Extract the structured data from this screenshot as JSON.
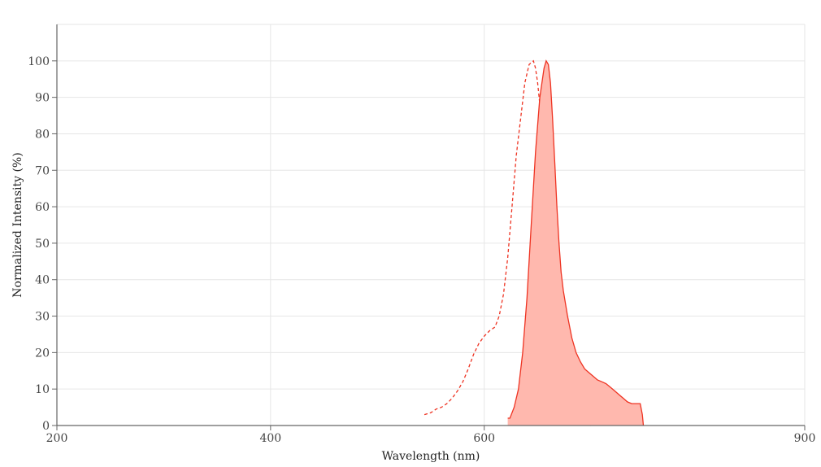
{
  "chart_data": {
    "type": "area",
    "title": "",
    "xlabel": "Wavelength (nm)",
    "ylabel": "Normalized Intensity (%)",
    "xlim": [
      200,
      900
    ],
    "ylim": [
      0,
      110
    ],
    "xticks": [
      200,
      400,
      600,
      900
    ],
    "yticks": [
      0,
      10,
      20,
      30,
      40,
      50,
      60,
      70,
      80,
      90,
      100
    ],
    "grid": true,
    "legend": "none",
    "colors": {
      "line": "#ee3322",
      "fill": "#ffb8ae"
    },
    "series": [
      {
        "style": "dashed",
        "x": [
          544,
          550,
          555,
          560,
          565,
          570,
          575,
          580,
          585,
          590,
          595,
          600,
          605,
          610,
          614,
          618,
          622,
          626,
          630,
          634,
          638,
          642,
          646,
          648,
          650,
          652,
          654,
          656,
          658,
          660,
          662,
          664,
          666,
          668,
          670,
          672,
          674,
          676,
          678,
          680,
          682,
          684,
          686,
          688,
          690,
          694,
          698,
          700
        ],
        "y": [
          3,
          3.5,
          4.5,
          5,
          6,
          7.5,
          9.5,
          12,
          15.5,
          19.5,
          22.5,
          24.5,
          26,
          27,
          30,
          36,
          46,
          60,
          74,
          84,
          94,
          99,
          100,
          98,
          94,
          88,
          80,
          70,
          60,
          50,
          40,
          31,
          24,
          18,
          13,
          9,
          6.5,
          4.5,
          3.5,
          2.5,
          2,
          1.6,
          1.2,
          0.9,
          0.6,
          0.3,
          0.1,
          0
        ]
      },
      {
        "style": "filled",
        "x": [
          622,
          624,
          628,
          632,
          636,
          640,
          644,
          648,
          652,
          656,
          658,
          660,
          662,
          664,
          666,
          668,
          670,
          672,
          674,
          678,
          682,
          686,
          690,
          694,
          698,
          702,
          706,
          710,
          714,
          718,
          722,
          726,
          730,
          734,
          738,
          742,
          746,
          748,
          749
        ],
        "y": [
          2,
          2,
          5,
          10,
          20,
          35,
          55,
          75,
          90,
          98,
          100,
          99,
          94,
          84,
          72,
          60,
          50,
          42,
          37,
          30,
          24,
          20,
          17.5,
          15.5,
          14.5,
          13.5,
          12.5,
          12,
          11.5,
          10.5,
          9.5,
          8.5,
          7.5,
          6.5,
          6,
          6,
          6,
          3,
          0
        ]
      }
    ]
  }
}
